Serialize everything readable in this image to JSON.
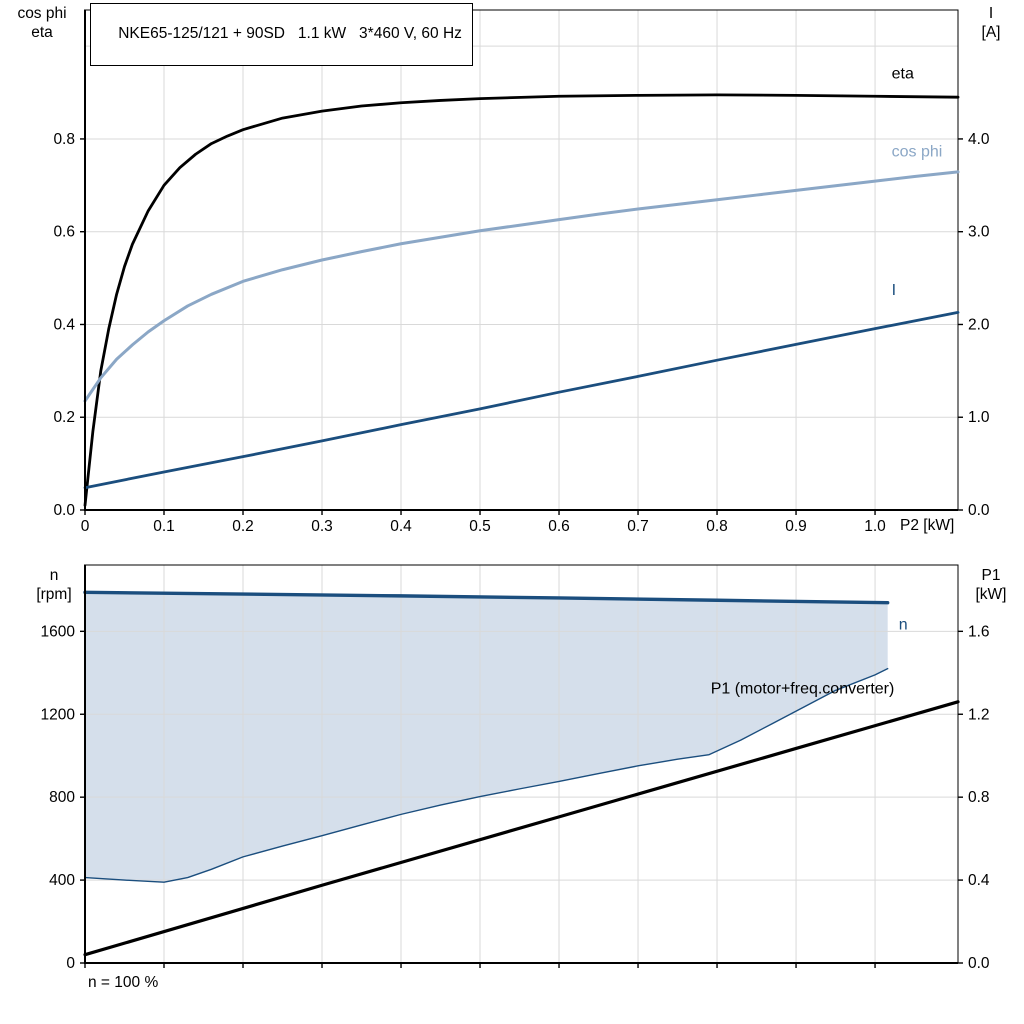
{
  "page": {
    "background": "#ffffff"
  },
  "header": {
    "title": "NKE65-125/121 + 90SD   1.1 kW   3*460 V, 60 Hz"
  },
  "top_chart_labels": {
    "y_left_line1": "cos phi",
    "y_left_line2": "eta",
    "y_right_line1": "I",
    "y_right_line2": "[A]",
    "x_label": "P2 [kW]"
  },
  "bottom_chart_labels": {
    "y_left_line1": "n",
    "y_left_line2": "[rpm]",
    "y_right_line1": "P1",
    "y_right_line2": "[kW]",
    "note": "n = 100 %"
  },
  "chart_data": [
    {
      "type": "line",
      "title": "NKE65-125/121 + 90SD   1.1 kW   3*460 V, 60 Hz",
      "xlabel": "P2 [kW]",
      "ylabel_left": "cos phi / eta",
      "ylabel_right": "I [A]",
      "x_range": [
        0,
        1.105
      ],
      "y_left_range": [
        0,
        1.078
      ],
      "y_right_range": [
        0,
        5.39
      ],
      "colors": {
        "grid": "#d9d9d9",
        "axis": "#000000"
      },
      "x_ticks": [
        {
          "v": 0,
          "label": "0"
        },
        {
          "v": 0.1,
          "label": "0.1"
        },
        {
          "v": 0.2,
          "label": "0.2"
        },
        {
          "v": 0.3,
          "label": "0.3"
        },
        {
          "v": 0.4,
          "label": "0.4"
        },
        {
          "v": 0.5,
          "label": "0.5"
        },
        {
          "v": 0.6,
          "label": "0.6"
        },
        {
          "v": 0.7,
          "label": "0.7"
        },
        {
          "v": 0.8,
          "label": "0.8"
        },
        {
          "v": 0.9,
          "label": "0.9"
        },
        {
          "v": 1.0,
          "label": "1.0"
        }
      ],
      "y_left_ticks": [
        {
          "v": 0,
          "label": "0.0"
        },
        {
          "v": 0.2,
          "label": "0.2"
        },
        {
          "v": 0.4,
          "label": "0.4"
        },
        {
          "v": 0.6,
          "label": "0.6"
        },
        {
          "v": 0.8,
          "label": "0.8"
        },
        {
          "v": 1.0,
          "label": "",
          "tick": false
        }
      ],
      "y_right_ticks": [
        {
          "v": 0,
          "label": "0.0"
        },
        {
          "v": 1,
          "label": "1.0"
        },
        {
          "v": 2,
          "label": "2.0"
        },
        {
          "v": 3,
          "label": "3.0"
        },
        {
          "v": 4,
          "label": "4.0"
        }
      ],
      "series": [
        {
          "name": "eta",
          "axis": "left",
          "color": "#000000",
          "width": 2.8,
          "label": {
            "text": "eta",
            "at": [
              1.021,
              0.93
            ]
          },
          "points": [
            [
              0,
              0.01
            ],
            [
              0.005,
              0.09
            ],
            [
              0.01,
              0.17
            ],
            [
              0.02,
              0.3
            ],
            [
              0.03,
              0.39
            ],
            [
              0.04,
              0.465
            ],
            [
              0.05,
              0.525
            ],
            [
              0.06,
              0.573
            ],
            [
              0.08,
              0.645
            ],
            [
              0.1,
              0.7
            ],
            [
              0.12,
              0.738
            ],
            [
              0.14,
              0.767
            ],
            [
              0.16,
              0.79
            ],
            [
              0.18,
              0.806
            ],
            [
              0.2,
              0.82
            ],
            [
              0.25,
              0.845
            ],
            [
              0.3,
              0.86
            ],
            [
              0.35,
              0.871
            ],
            [
              0.4,
              0.878
            ],
            [
              0.45,
              0.883
            ],
            [
              0.5,
              0.887
            ],
            [
              0.6,
              0.892
            ],
            [
              0.7,
              0.894
            ],
            [
              0.8,
              0.895
            ],
            [
              0.9,
              0.894
            ],
            [
              1.0,
              0.892
            ],
            [
              1.105,
              0.89
            ]
          ]
        },
        {
          "name": "cos-phi",
          "axis": "left",
          "color": "#8ba7c6",
          "width": 3,
          "label": {
            "text": "cos phi",
            "at": [
              1.021,
              0.762
            ]
          },
          "points": [
            [
              0,
              0.235
            ],
            [
              0.01,
              0.26
            ],
            [
              0.02,
              0.285
            ],
            [
              0.04,
              0.325
            ],
            [
              0.06,
              0.356
            ],
            [
              0.08,
              0.384
            ],
            [
              0.1,
              0.408
            ],
            [
              0.13,
              0.44
            ],
            [
              0.16,
              0.465
            ],
            [
              0.2,
              0.493
            ],
            [
              0.25,
              0.518
            ],
            [
              0.3,
              0.539
            ],
            [
              0.35,
              0.557
            ],
            [
              0.4,
              0.574
            ],
            [
              0.45,
              0.588
            ],
            [
              0.5,
              0.602
            ],
            [
              0.55,
              0.614
            ],
            [
              0.6,
              0.626
            ],
            [
              0.65,
              0.638
            ],
            [
              0.7,
              0.649
            ],
            [
              0.75,
              0.659
            ],
            [
              0.8,
              0.669
            ],
            [
              0.85,
              0.679
            ],
            [
              0.9,
              0.689
            ],
            [
              0.95,
              0.699
            ],
            [
              1.0,
              0.709
            ],
            [
              1.05,
              0.719
            ],
            [
              1.105,
              0.729
            ]
          ]
        },
        {
          "name": "current",
          "axis": "right",
          "color": "#1b4e7e",
          "width": 2.8,
          "label": {
            "text": "I",
            "at": [
              1.021,
              2.32
            ]
          },
          "points": [
            [
              0,
              0.24
            ],
            [
              0.1,
              0.41
            ],
            [
              0.2,
              0.575
            ],
            [
              0.3,
              0.745
            ],
            [
              0.4,
              0.92
            ],
            [
              0.5,
              1.09
            ],
            [
              0.6,
              1.27
            ],
            [
              0.7,
              1.44
            ],
            [
              0.8,
              1.615
            ],
            [
              0.9,
              1.785
            ],
            [
              1.0,
              1.955
            ],
            [
              1.105,
              2.13
            ]
          ]
        }
      ]
    },
    {
      "type": "line",
      "title": "speed and input power",
      "xlabel": "",
      "ylabel_left": "n [rpm]",
      "ylabel_right": "P1 [kW]",
      "note": "n = 100 %",
      "x_range": [
        0,
        1.105
      ],
      "y_left_range": [
        0,
        1920
      ],
      "y_right_range": [
        0,
        1.92
      ],
      "colors": {
        "grid": "#d9d9d9",
        "axis": "#000000"
      },
      "x_ticks": [
        {
          "v": 0,
          "label": ""
        },
        {
          "v": 0.1,
          "label": ""
        },
        {
          "v": 0.2,
          "label": ""
        },
        {
          "v": 0.3,
          "label": ""
        },
        {
          "v": 0.4,
          "label": ""
        },
        {
          "v": 0.5,
          "label": ""
        },
        {
          "v": 0.6,
          "label": ""
        },
        {
          "v": 0.7,
          "label": ""
        },
        {
          "v": 0.8,
          "label": ""
        },
        {
          "v": 0.9,
          "label": ""
        },
        {
          "v": 1.0,
          "label": ""
        }
      ],
      "y_left_ticks": [
        {
          "v": 0,
          "label": "0"
        },
        {
          "v": 400,
          "label": "400"
        },
        {
          "v": 800,
          "label": "800"
        },
        {
          "v": 1200,
          "label": "1200"
        },
        {
          "v": 1600,
          "label": "1600"
        }
      ],
      "y_right_ticks": [
        {
          "v": 0,
          "label": "0.0"
        },
        {
          "v": 0.4,
          "label": "0.4"
        },
        {
          "v": 0.8,
          "label": "0.8"
        },
        {
          "v": 1.2,
          "label": "1.2"
        },
        {
          "v": 1.6,
          "label": "1.6"
        }
      ],
      "bands": [
        {
          "upper": "n",
          "lower": "n-min",
          "color": "#d5dfeb"
        }
      ],
      "series": [
        {
          "name": "n-min",
          "axis": "left",
          "color": "#1b4e7e",
          "width": 1.4,
          "points": [
            [
              0,
              412
            ],
            [
              0.05,
              400
            ],
            [
              0.1,
              390
            ],
            [
              0.13,
              412
            ],
            [
              0.16,
              452
            ],
            [
              0.2,
              512
            ],
            [
              0.25,
              564
            ],
            [
              0.3,
              614
            ],
            [
              0.35,
              666
            ],
            [
              0.4,
              717
            ],
            [
              0.45,
              762
            ],
            [
              0.5,
              803
            ],
            [
              0.55,
              840
            ],
            [
              0.6,
              876
            ],
            [
              0.65,
              914
            ],
            [
              0.7,
              951
            ],
            [
              0.75,
              983
            ],
            [
              0.79,
              1005
            ],
            [
              0.83,
              1075
            ],
            [
              0.87,
              1155
            ],
            [
              0.91,
              1235
            ],
            [
              0.95,
              1315
            ],
            [
              1.0,
              1390
            ],
            [
              1.016,
              1420
            ]
          ]
        },
        {
          "name": "n",
          "axis": "left",
          "color": "#1b4e7e",
          "width": 3.4,
          "label": {
            "text": "n",
            "at": [
              1.03,
              1610
            ]
          },
          "points": [
            [
              0,
              1788
            ],
            [
              0.2,
              1780
            ],
            [
              0.4,
              1771
            ],
            [
              0.6,
              1761
            ],
            [
              0.8,
              1750
            ],
            [
              1.016,
              1738
            ]
          ]
        },
        {
          "name": "P1",
          "axis": "right",
          "color": "#000000",
          "width": 3.2,
          "label": {
            "text": "P1 (motor+freq.converter)",
            "at": [
              0.792,
              1.3
            ]
          },
          "points": [
            [
              0,
              0.04
            ],
            [
              0.3,
              0.375
            ],
            [
              0.6,
              0.705
            ],
            [
              0.9,
              1.035
            ],
            [
              1.105,
              1.26
            ]
          ]
        }
      ]
    }
  ]
}
